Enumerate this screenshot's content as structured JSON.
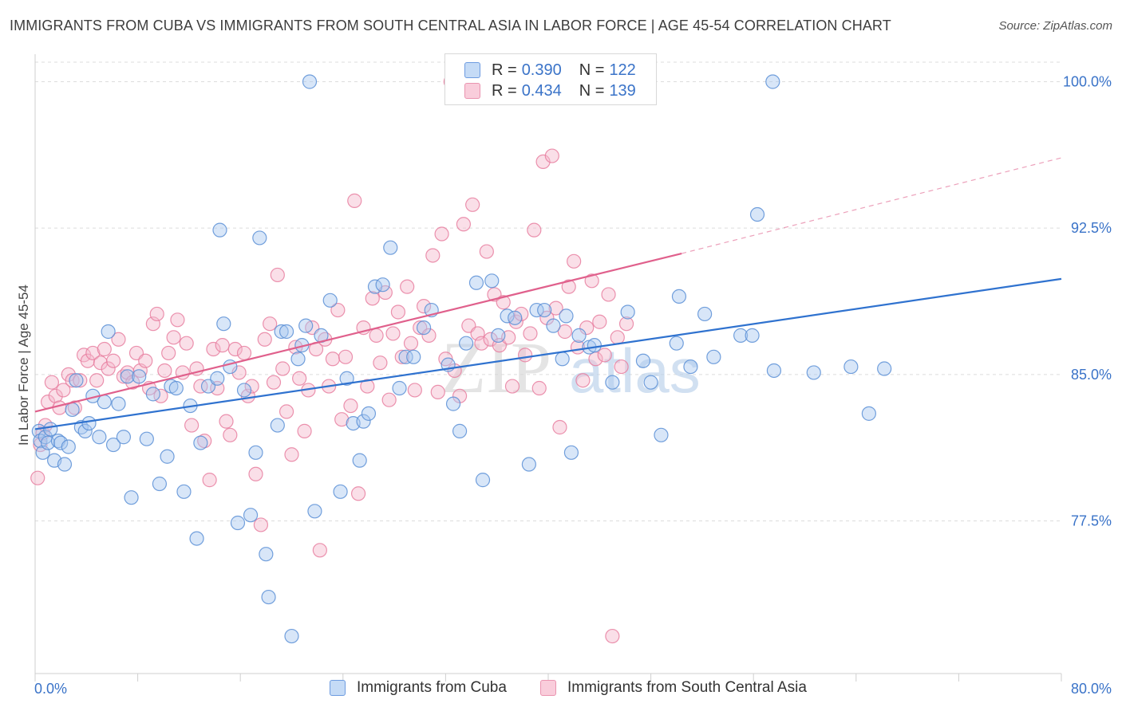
{
  "title": "IMMIGRANTS FROM CUBA VS IMMIGRANTS FROM SOUTH CENTRAL ASIA IN LABOR FORCE | AGE 45-54 CORRELATION CHART",
  "source": "Source: ZipAtlas.com",
  "watermark": "ZIPatlas",
  "colors": {
    "cuba_fill": "#a8c8f0",
    "cuba_stroke": "#5b8fd6",
    "cuba_line": "#2f72cf",
    "asia_fill": "#f5b8cc",
    "asia_stroke": "#e87fa0",
    "asia_line": "#e0608c",
    "accent_text": "#3a73c8"
  },
  "legend": {
    "rows": [
      {
        "r_label": "R =",
        "r_value": "0.390",
        "n_label": "N =",
        "n_value": "122"
      },
      {
        "r_label": "R =",
        "r_value": "0.434",
        "n_label": "N =",
        "n_value": "139"
      }
    ]
  },
  "chart_data": {
    "type": "scatter",
    "title": "IMMIGRANTS FROM CUBA VS IMMIGRANTS FROM SOUTH CENTRAL ASIA IN LABOR FORCE | AGE 45-54 CORRELATION CHART",
    "xlabel": "",
    "ylabel": "In Labor Force | Age 45-54",
    "xlim": [
      0,
      80
    ],
    "ylim": [
      70.5,
      101
    ],
    "x_tick_labels": [
      "0.0%",
      "80.0%"
    ],
    "y_ticks": [
      77.5,
      85.0,
      92.5,
      100.0
    ],
    "y_tick_labels": [
      "77.5%",
      "85.0%",
      "92.5%",
      "100.0%"
    ],
    "grid": true,
    "legend_position": "bottom",
    "series": [
      {
        "name": "Immigrants from Cuba",
        "trend": {
          "x": [
            0,
            80
          ],
          "y": [
            82.2,
            89.9
          ]
        },
        "points": [
          [
            0.3,
            82.1
          ],
          [
            0.4,
            81.6
          ],
          [
            0.6,
            81.0
          ],
          [
            0.8,
            81.8
          ],
          [
            1.0,
            81.5
          ],
          [
            1.2,
            82.2
          ],
          [
            1.5,
            80.6
          ],
          [
            1.8,
            81.6
          ],
          [
            2.0,
            81.5
          ],
          [
            2.3,
            80.4
          ],
          [
            2.6,
            81.3
          ],
          [
            2.9,
            83.2
          ],
          [
            3.2,
            84.7
          ],
          [
            3.6,
            82.3
          ],
          [
            3.9,
            82.1
          ],
          [
            4.2,
            82.5
          ],
          [
            4.5,
            83.9
          ],
          [
            5.0,
            81.8
          ],
          [
            5.4,
            83.6
          ],
          [
            5.7,
            87.2
          ],
          [
            6.1,
            81.4
          ],
          [
            6.5,
            83.5
          ],
          [
            6.9,
            81.8
          ],
          [
            7.2,
            84.9
          ],
          [
            7.5,
            78.7
          ],
          [
            8.1,
            84.9
          ],
          [
            8.7,
            81.7
          ],
          [
            9.2,
            84.0
          ],
          [
            9.7,
            79.4
          ],
          [
            10.3,
            80.8
          ],
          [
            10.6,
            84.4
          ],
          [
            11.0,
            84.3
          ],
          [
            11.6,
            79.0
          ],
          [
            12.1,
            83.4
          ],
          [
            12.6,
            76.6
          ],
          [
            12.9,
            81.5
          ],
          [
            13.5,
            84.4
          ],
          [
            14.2,
            84.8
          ],
          [
            14.4,
            92.4
          ],
          [
            14.7,
            87.6
          ],
          [
            15.2,
            85.4
          ],
          [
            15.8,
            77.4
          ],
          [
            16.3,
            84.2
          ],
          [
            16.8,
            77.8
          ],
          [
            17.2,
            81.0
          ],
          [
            17.5,
            92.0
          ],
          [
            18.0,
            75.8
          ],
          [
            18.2,
            73.6
          ],
          [
            18.9,
            82.4
          ],
          [
            19.2,
            87.2
          ],
          [
            19.6,
            87.2
          ],
          [
            20.0,
            71.6
          ],
          [
            20.5,
            85.8
          ],
          [
            20.8,
            86.5
          ],
          [
            21.1,
            87.5
          ],
          [
            21.4,
            100.0
          ],
          [
            21.8,
            78.0
          ],
          [
            22.3,
            87.0
          ],
          [
            23.0,
            88.8
          ],
          [
            23.8,
            79.0
          ],
          [
            24.3,
            84.8
          ],
          [
            24.8,
            82.5
          ],
          [
            25.3,
            80.6
          ],
          [
            25.6,
            82.6
          ],
          [
            26.0,
            83.0
          ],
          [
            26.5,
            89.5
          ],
          [
            27.1,
            89.6
          ],
          [
            27.7,
            91.5
          ],
          [
            28.4,
            84.3
          ],
          [
            28.9,
            85.9
          ],
          [
            29.5,
            85.9
          ],
          [
            30.3,
            87.4
          ],
          [
            30.9,
            88.3
          ],
          [
            32.2,
            85.5
          ],
          [
            32.6,
            83.5
          ],
          [
            33.1,
            82.1
          ],
          [
            33.6,
            86.6
          ],
          [
            34.4,
            89.7
          ],
          [
            34.9,
            79.6
          ],
          [
            35.6,
            89.8
          ],
          [
            36.1,
            87.0
          ],
          [
            36.8,
            88.0
          ],
          [
            37.4,
            87.9
          ],
          [
            38.5,
            80.4
          ],
          [
            39.1,
            88.3
          ],
          [
            39.7,
            88.3
          ],
          [
            40.4,
            87.5
          ],
          [
            41.1,
            85.8
          ],
          [
            41.4,
            88.0
          ],
          [
            41.8,
            81.0
          ],
          [
            42.4,
            87.0
          ],
          [
            43.2,
            86.4
          ],
          [
            43.6,
            86.5
          ],
          [
            45.0,
            84.6
          ],
          [
            46.2,
            88.2
          ],
          [
            47.4,
            85.7
          ],
          [
            48.0,
            84.6
          ],
          [
            48.8,
            81.9
          ],
          [
            50.0,
            86.6
          ],
          [
            50.2,
            89.0
          ],
          [
            51.1,
            85.4
          ],
          [
            52.2,
            88.1
          ],
          [
            52.9,
            85.9
          ],
          [
            55.0,
            87.0
          ],
          [
            55.9,
            87.0
          ],
          [
            56.3,
            93.2
          ],
          [
            57.5,
            100.0
          ],
          [
            57.6,
            85.2
          ],
          [
            60.7,
            85.1
          ],
          [
            63.6,
            85.4
          ],
          [
            65.0,
            83.0
          ],
          [
            66.2,
            85.3
          ]
        ]
      },
      {
        "name": "Immigrants from South Central Asia",
        "trend": {
          "x": [
            0,
            50.4
          ],
          "y": [
            83.1,
            91.2
          ]
        },
        "trend_extended": {
          "x": [
            50.4,
            80
          ],
          "y": [
            91.2,
            96.1
          ]
        },
        "points": [
          [
            0.2,
            79.7
          ],
          [
            0.4,
            81.4
          ],
          [
            0.6,
            82.0
          ],
          [
            0.8,
            82.4
          ],
          [
            1.0,
            83.6
          ],
          [
            1.3,
            84.6
          ],
          [
            1.6,
            83.9
          ],
          [
            1.9,
            83.3
          ],
          [
            2.2,
            84.2
          ],
          [
            2.6,
            85.0
          ],
          [
            2.9,
            84.7
          ],
          [
            3.1,
            83.3
          ],
          [
            3.5,
            84.7
          ],
          [
            3.8,
            86.0
          ],
          [
            4.1,
            85.7
          ],
          [
            4.5,
            86.1
          ],
          [
            4.8,
            84.7
          ],
          [
            5.1,
            85.6
          ],
          [
            5.4,
            86.3
          ],
          [
            5.7,
            85.3
          ],
          [
            6.1,
            85.7
          ],
          [
            6.5,
            86.8
          ],
          [
            6.9,
            84.9
          ],
          [
            7.2,
            85.1
          ],
          [
            7.6,
            84.6
          ],
          [
            7.9,
            86.1
          ],
          [
            8.2,
            85.2
          ],
          [
            8.6,
            85.7
          ],
          [
            8.9,
            84.3
          ],
          [
            9.2,
            87.6
          ],
          [
            9.5,
            88.1
          ],
          [
            9.8,
            83.9
          ],
          [
            10.1,
            85.2
          ],
          [
            10.4,
            86.1
          ],
          [
            10.8,
            86.9
          ],
          [
            11.1,
            87.8
          ],
          [
            11.5,
            85.1
          ],
          [
            11.8,
            86.6
          ],
          [
            12.2,
            82.4
          ],
          [
            12.6,
            85.3
          ],
          [
            12.9,
            84.4
          ],
          [
            13.2,
            81.6
          ],
          [
            13.6,
            79.6
          ],
          [
            13.9,
            86.3
          ],
          [
            14.2,
            84.3
          ],
          [
            14.6,
            86.5
          ],
          [
            14.9,
            82.6
          ],
          [
            15.2,
            81.9
          ],
          [
            15.6,
            86.3
          ],
          [
            15.9,
            85.1
          ],
          [
            16.3,
            86.1
          ],
          [
            16.6,
            83.9
          ],
          [
            16.9,
            84.4
          ],
          [
            17.2,
            79.9
          ],
          [
            17.6,
            77.3
          ],
          [
            17.9,
            86.8
          ],
          [
            18.3,
            87.6
          ],
          [
            18.6,
            84.6
          ],
          [
            18.9,
            90.1
          ],
          [
            19.3,
            85.3
          ],
          [
            19.6,
            83.1
          ],
          [
            20.0,
            80.9
          ],
          [
            20.3,
            86.4
          ],
          [
            20.6,
            84.8
          ],
          [
            21.0,
            82.1
          ],
          [
            21.3,
            84.2
          ],
          [
            21.6,
            87.4
          ],
          [
            21.9,
            86.3
          ],
          [
            22.2,
            76.0
          ],
          [
            22.6,
            86.8
          ],
          [
            22.9,
            84.4
          ],
          [
            23.2,
            85.8
          ],
          [
            23.6,
            88.3
          ],
          [
            23.9,
            82.7
          ],
          [
            24.2,
            85.9
          ],
          [
            24.6,
            83.4
          ],
          [
            24.9,
            93.9
          ],
          [
            25.2,
            78.9
          ],
          [
            25.6,
            87.4
          ],
          [
            25.9,
            84.4
          ],
          [
            26.3,
            88.9
          ],
          [
            26.6,
            87.0
          ],
          [
            26.9,
            85.6
          ],
          [
            27.3,
            89.2
          ],
          [
            27.6,
            83.7
          ],
          [
            27.9,
            87.1
          ],
          [
            28.3,
            88.2
          ],
          [
            28.6,
            85.9
          ],
          [
            29.0,
            89.5
          ],
          [
            29.3,
            86.6
          ],
          [
            29.6,
            84.2
          ],
          [
            30.0,
            87.4
          ],
          [
            30.3,
            88.5
          ],
          [
            30.7,
            87.0
          ],
          [
            31.0,
            91.1
          ],
          [
            31.4,
            84.1
          ],
          [
            31.7,
            92.2
          ],
          [
            32.0,
            85.8
          ],
          [
            32.4,
            100.0
          ],
          [
            32.7,
            85.2
          ],
          [
            33.1,
            83.9
          ],
          [
            33.4,
            92.7
          ],
          [
            33.8,
            87.5
          ],
          [
            34.1,
            93.7
          ],
          [
            34.5,
            87.1
          ],
          [
            34.8,
            86.6
          ],
          [
            35.2,
            91.3
          ],
          [
            35.5,
            86.8
          ],
          [
            35.8,
            89.1
          ],
          [
            36.2,
            86.5
          ],
          [
            36.5,
            88.7
          ],
          [
            36.9,
            86.9
          ],
          [
            37.2,
            84.4
          ],
          [
            37.5,
            87.7
          ],
          [
            37.9,
            88.1
          ],
          [
            38.2,
            86.0
          ],
          [
            38.6,
            87.1
          ],
          [
            38.9,
            92.4
          ],
          [
            39.3,
            84.3
          ],
          [
            39.6,
            95.9
          ],
          [
            39.9,
            87.9
          ],
          [
            40.3,
            96.2
          ],
          [
            40.6,
            88.4
          ],
          [
            40.9,
            82.3
          ],
          [
            41.3,
            87.2
          ],
          [
            41.6,
            89.5
          ],
          [
            42.0,
            90.8
          ],
          [
            42.3,
            86.4
          ],
          [
            42.7,
            84.7
          ],
          [
            43.0,
            87.4
          ],
          [
            43.4,
            89.8
          ],
          [
            43.7,
            85.8
          ],
          [
            44.0,
            87.7
          ],
          [
            44.4,
            86.0
          ],
          [
            44.7,
            89.1
          ],
          [
            45.0,
            71.6
          ],
          [
            45.4,
            86.9
          ],
          [
            45.7,
            85.4
          ],
          [
            46.1,
            87.6
          ]
        ]
      }
    ]
  },
  "bottom_legend": {
    "items": [
      {
        "label": "Immigrants from Cuba"
      },
      {
        "label": "Immigrants from South Central Asia"
      }
    ]
  },
  "axes": {
    "x_min_label": "0.0%",
    "x_max_label": "80.0%",
    "y_label": "In Labor Force | Age 45-54"
  }
}
